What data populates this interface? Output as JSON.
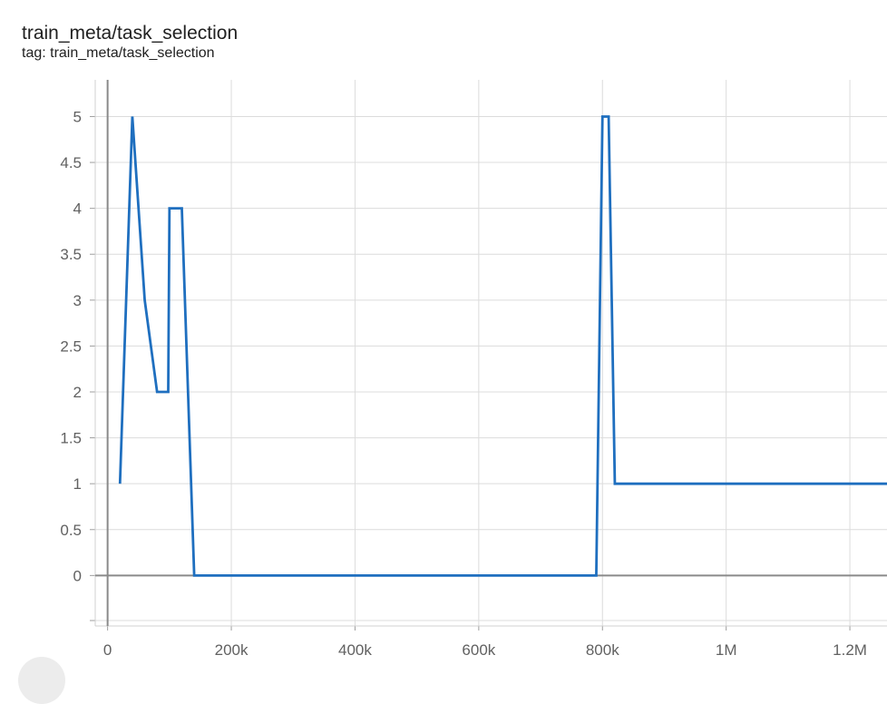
{
  "card": {
    "title": "train_meta/task_selection",
    "tag": "tag: train_meta/task_selection"
  },
  "chart_data": {
    "type": "line",
    "title": "train_meta/task_selection",
    "xlabel": "",
    "ylabel": "",
    "xlim": [
      -20000,
      1260000
    ],
    "ylim": [
      -0.55,
      5.4
    ],
    "grid": true,
    "x_ticks": [
      {
        "value": 0,
        "label": "0"
      },
      {
        "value": 200000,
        "label": "200k"
      },
      {
        "value": 400000,
        "label": "400k"
      },
      {
        "value": 600000,
        "label": "600k"
      },
      {
        "value": 800000,
        "label": "800k"
      },
      {
        "value": 1000000,
        "label": "1M"
      },
      {
        "value": 1200000,
        "label": "1.2M"
      }
    ],
    "y_ticks": [
      {
        "value": 0,
        "label": "0"
      },
      {
        "value": 0.5,
        "label": "0.5"
      },
      {
        "value": 1,
        "label": "1"
      },
      {
        "value": 1.5,
        "label": "1.5"
      },
      {
        "value": 2,
        "label": "2"
      },
      {
        "value": 2.5,
        "label": "2.5"
      },
      {
        "value": 3,
        "label": "3"
      },
      {
        "value": 3.5,
        "label": "3.5"
      },
      {
        "value": 4,
        "label": "4"
      },
      {
        "value": 4.5,
        "label": "4.5"
      },
      {
        "value": 5,
        "label": "5"
      }
    ],
    "series": [
      {
        "name": "train_meta/task_selection",
        "color": "#1f6fbf",
        "x": [
          20000,
          40000,
          60000,
          80000,
          98000,
          100000,
          120000,
          140000,
          790000,
          800000,
          810000,
          820000,
          1260000
        ],
        "y": [
          1,
          5,
          3,
          2,
          2,
          4,
          4,
          0,
          0,
          5,
          5,
          1,
          1
        ]
      }
    ]
  }
}
